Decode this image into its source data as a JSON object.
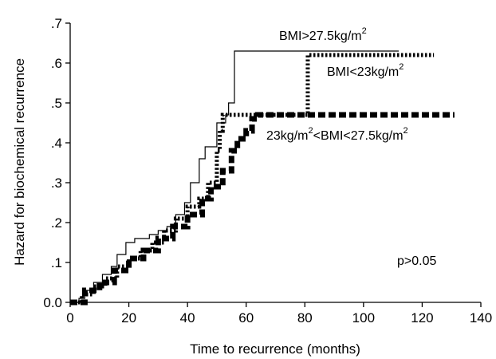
{
  "chart_data": {
    "type": "line",
    "title": "",
    "xlabel": "Time to recurrence (months)",
    "ylabel": "Hazard for biochemical recurrence",
    "xlim": [
      0,
      140
    ],
    "ylim": [
      0,
      0.7
    ],
    "x_ticks": [
      0,
      20,
      40,
      60,
      80,
      100,
      120,
      140
    ],
    "x_tick_labels": [
      "0",
      "20",
      "40",
      "60",
      "80",
      "100",
      "120",
      "140"
    ],
    "y_ticks": [
      0,
      0.1,
      0.2,
      0.3,
      0.4,
      0.5,
      0.6,
      0.7
    ],
    "y_tick_labels": [
      "0.0",
      ".1",
      ".2",
      ".3",
      ".4",
      ".5",
      ".6",
      ".7"
    ],
    "grid": false,
    "legend": "inline labels near line ends",
    "annotation": "p>0.05",
    "series": [
      {
        "name": "BMI>27.5kg/m2",
        "label_main": "BMI>27.5kg/m",
        "label_sup": "2",
        "style": "thin-solid",
        "color": "#000000",
        "x": [
          0,
          3,
          5,
          8,
          11,
          14,
          16,
          19,
          22,
          24,
          27,
          30,
          33,
          36,
          39,
          41,
          44,
          46,
          48,
          50,
          52,
          53,
          54,
          55,
          56,
          112
        ],
        "y": [
          0,
          0.01,
          0.03,
          0.05,
          0.07,
          0.09,
          0.12,
          0.15,
          0.16,
          0.16,
          0.17,
          0.18,
          0.19,
          0.22,
          0.25,
          0.3,
          0.36,
          0.39,
          0.39,
          0.45,
          0.45,
          0.47,
          0.5,
          0.5,
          0.63,
          0.63
        ]
      },
      {
        "name": "BMI<23kg/m2",
        "label_main": "BMI<23kg/m",
        "label_sup": "2",
        "style": "dotted",
        "color": "#000000",
        "x": [
          0,
          4,
          8,
          12,
          16,
          20,
          24,
          28,
          32,
          36,
          40,
          44,
          47,
          50,
          51,
          52,
          54,
          60,
          80,
          81,
          124
        ],
        "y": [
          0,
          0.02,
          0.04,
          0.06,
          0.09,
          0.11,
          0.13,
          0.15,
          0.18,
          0.21,
          0.24,
          0.26,
          0.3,
          0.38,
          0.43,
          0.47,
          0.47,
          0.47,
          0.47,
          0.62,
          0.62
        ]
      },
      {
        "name": "23kg/m2<BMI<27.5kg/m2",
        "label_main": "23kg/m",
        "label_sup": "2",
        "label_rest": "<BMI<27.5kg/m",
        "label_sup2": "2",
        "style": "thick-dashed",
        "color": "#000000",
        "x": [
          0,
          5,
          10,
          15,
          20,
          25,
          30,
          35,
          40,
          45,
          48,
          52,
          55,
          57,
          60,
          62,
          64,
          80,
          131
        ],
        "y": [
          0,
          0.03,
          0.05,
          0.08,
          0.11,
          0.13,
          0.16,
          0.19,
          0.22,
          0.26,
          0.29,
          0.33,
          0.38,
          0.41,
          0.43,
          0.46,
          0.47,
          0.47,
          0.47
        ]
      }
    ]
  }
}
